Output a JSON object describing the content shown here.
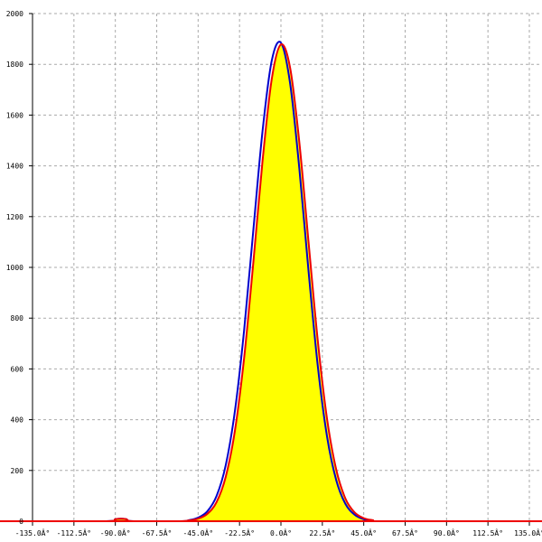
{
  "chart_data": {
    "type": "area",
    "title": "",
    "xlabel": "",
    "ylabel": "",
    "xlim": [
      -135,
      135
    ],
    "ylim": [
      0,
      2000
    ],
    "grid": true,
    "x_ticks": [
      -135,
      -112.5,
      -90,
      -67.5,
      -45,
      -22.5,
      0,
      22.5,
      45,
      67.5,
      90,
      112.5,
      135
    ],
    "x_tick_labels": [
      "-135.0Â°",
      "-112.5Â°",
      "-90.0Â°",
      "-67.5Â°",
      "-45.0Â°",
      "-22.5Â°",
      "0.0Â°",
      "22.5Â°",
      "45.0Â°",
      "67.5Â°",
      "90.0Â°",
      "112.5Â°",
      "135.0Â°"
    ],
    "y_ticks": [
      0,
      200,
      400,
      600,
      800,
      1000,
      1200,
      1400,
      1600,
      1800,
      2000
    ],
    "y_tick_labels": [
      "0",
      "200",
      "400",
      "600",
      "800",
      "1000",
      "1200",
      "1400",
      "1600",
      "1800",
      "2000"
    ],
    "x": [
      -135,
      -95,
      -90,
      -87,
      -84,
      -80,
      -55,
      -50,
      -45,
      -40,
      -35,
      -30,
      -25,
      -20,
      -15,
      -10,
      -5,
      0,
      5,
      10,
      15,
      20,
      25,
      30,
      35,
      40,
      45,
      50,
      55,
      135
    ],
    "series": [
      {
        "color": "#0000cc",
        "fill": null,
        "values": [
          0,
          0,
          8,
          10,
          8,
          0,
          0,
          4,
          14,
          39,
          99,
          221,
          435,
          753,
          1147,
          1537,
          1814,
          1885,
          1724,
          1389,
          985,
          613,
          336,
          163,
          69,
          26,
          8,
          2,
          0,
          0
        ]
      },
      {
        "color": "#ee0000",
        "fill": "#ffff00",
        "values": [
          0,
          0,
          8,
          10,
          8,
          0,
          0,
          3,
          10,
          29,
          75,
          175,
          357,
          643,
          1019,
          1419,
          1741,
          1878,
          1786,
          1493,
          1100,
          713,
          406,
          205,
          90,
          35,
          12,
          4,
          0,
          0
        ]
      }
    ],
    "axis_color": "#000000",
    "baseline_color": "#ee0000",
    "grid_color": "#aaaaaa"
  }
}
